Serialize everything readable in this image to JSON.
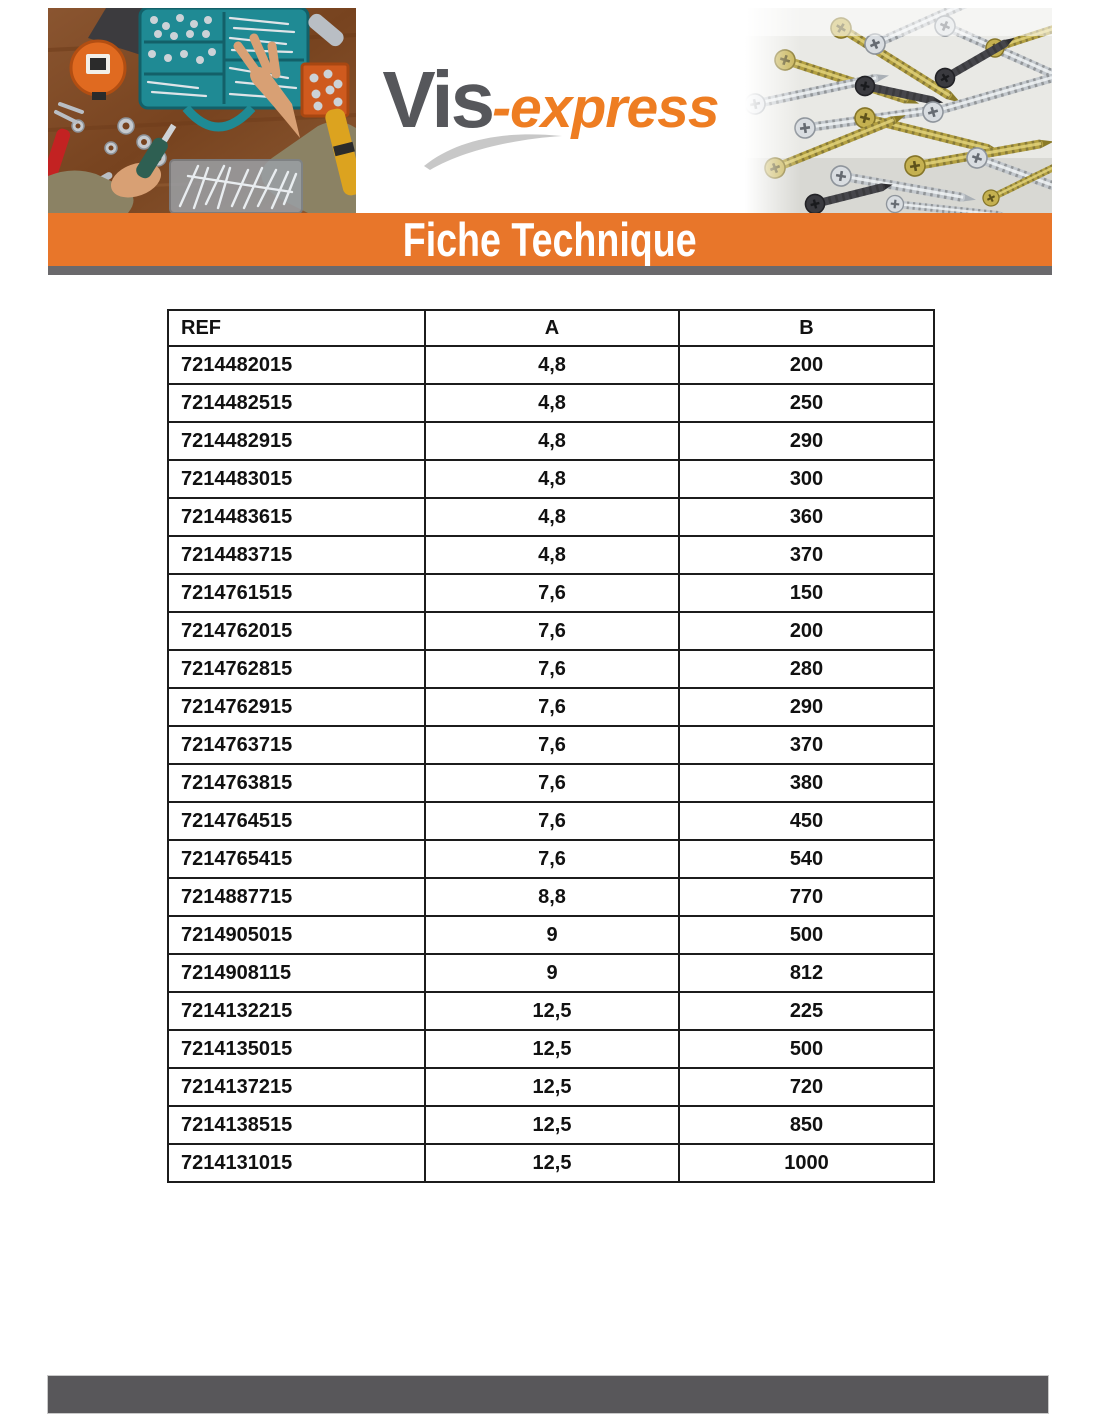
{
  "logo": {
    "brand_primary": "Vis",
    "brand_secondary": "-express"
  },
  "banner": {
    "title": "Fiche Technique"
  },
  "table": {
    "columns": [
      "REF",
      "A",
      "B"
    ],
    "rows": [
      [
        "7214482015",
        "4,8",
        "200"
      ],
      [
        "7214482515",
        "4,8",
        "250"
      ],
      [
        "7214482915",
        "4,8",
        "290"
      ],
      [
        "7214483015",
        "4,8",
        "300"
      ],
      [
        "7214483615",
        "4,8",
        "360"
      ],
      [
        "7214483715",
        "4,8",
        "370"
      ],
      [
        "7214761515",
        "7,6",
        "150"
      ],
      [
        "7214762015",
        "7,6",
        "200"
      ],
      [
        "7214762815",
        "7,6",
        "280"
      ],
      [
        "7214762915",
        "7,6",
        "290"
      ],
      [
        "7214763715",
        "7,6",
        "370"
      ],
      [
        "7214763815",
        "7,6",
        "380"
      ],
      [
        "7214764515",
        "7,6",
        "450"
      ],
      [
        "7214765415",
        "7,6",
        "540"
      ],
      [
        "7214887715",
        "8,8",
        "770"
      ],
      [
        "7214905015",
        "9",
        "500"
      ],
      [
        "7214908115",
        "9",
        "812"
      ],
      [
        "7214132215",
        "12,5",
        "225"
      ],
      [
        "7214135015",
        "12,5",
        "500"
      ],
      [
        "7214137215",
        "12,5",
        "720"
      ],
      [
        "7214138515",
        "12,5",
        "850"
      ],
      [
        "7214131015",
        "12,5",
        "1000"
      ]
    ]
  },
  "colors": {
    "accent_orange": "#e8762a",
    "logo_orange": "#ee7d22",
    "brand_gray": "#56575b",
    "strip_gray": "#6a696c",
    "footer_gray": "#58575a",
    "table_border": "#1c1c1c"
  }
}
